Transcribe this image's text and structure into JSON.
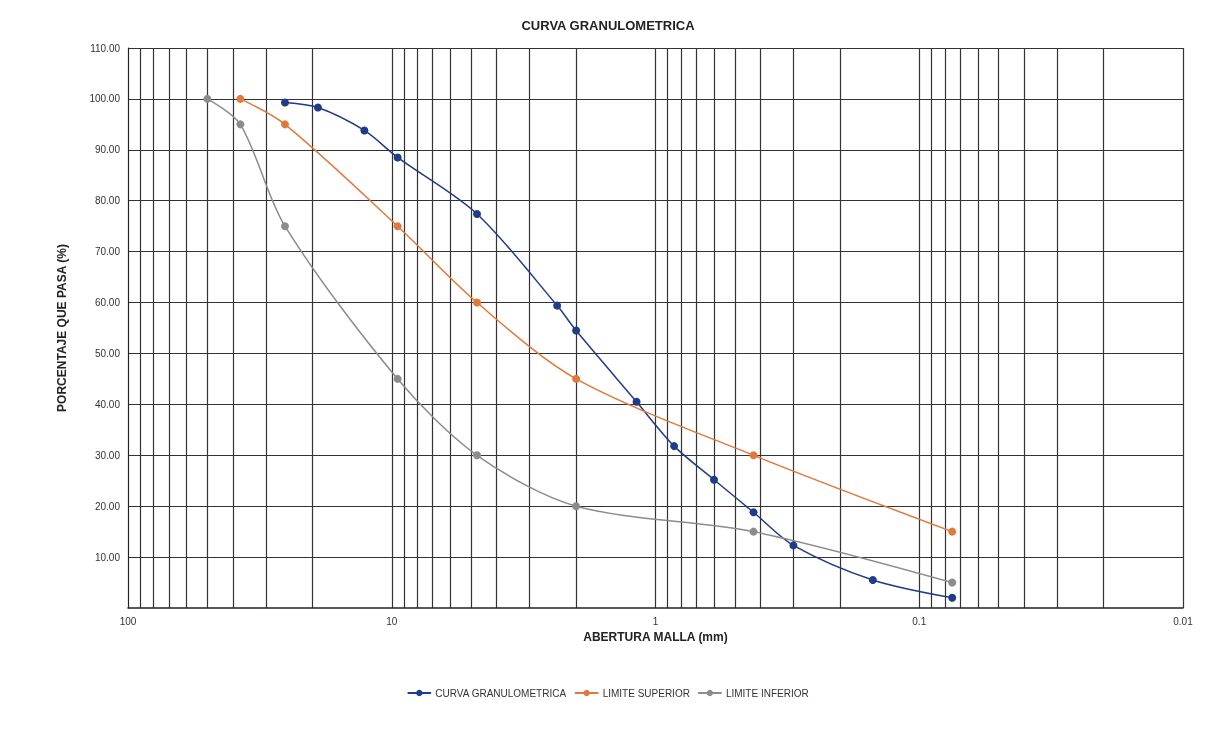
{
  "chart_data": {
    "type": "line",
    "title": "CURVA GRANULOMETRICA",
    "xlabel": "ABERTURA MALLA (mm)",
    "ylabel": "PORCENTAJE QUE PASA (%)",
    "series": [
      {
        "name": "CURVA GRANULOMETRICA",
        "color": "#1f3c88",
        "x": [
          25.4,
          19.05,
          12.7,
          9.5,
          4.75,
          2.36,
          2.0,
          1.18,
          0.85,
          0.6,
          0.425,
          0.3,
          0.15,
          0.075
        ],
        "values": [
          99.3,
          98.3,
          93.8,
          88.5,
          77.4,
          59.4,
          54.5,
          40.5,
          31.8,
          25.2,
          18.8,
          12.3,
          5.5,
          2.0
        ]
      },
      {
        "name": "LIMITE SUPERIOR",
        "color": "#e07a3a",
        "x": [
          37.5,
          25.4,
          9.5,
          4.75,
          2.0,
          0.425,
          0.075
        ],
        "values": [
          100,
          95,
          75,
          60,
          45,
          30,
          15
        ]
      },
      {
        "name": "LIMITE INFERIOR",
        "color": "#8c8c8c",
        "x": [
          50,
          37.5,
          25.4,
          9.5,
          4.75,
          2.0,
          0.425,
          0.075
        ],
        "values": [
          100,
          95,
          75,
          45,
          30,
          20,
          15,
          5
        ]
      }
    ],
    "log": "x",
    "xlim": [
      100,
      0.01
    ],
    "xticks": [
      100,
      10,
      1,
      0.1,
      0.01
    ],
    "ylim": [
      0,
      110
    ],
    "yticks": [
      {
        "value": 10,
        "label": "10.00"
      },
      {
        "value": 20,
        "label": "20.00"
      },
      {
        "value": 30,
        "label": "30.00"
      },
      {
        "value": 40,
        "label": "40.00"
      },
      {
        "value": 50,
        "label": "50.00"
      },
      {
        "value": 60,
        "label": "60.00"
      },
      {
        "value": 70,
        "label": "70.00"
      },
      {
        "value": 80,
        "label": "80.00"
      },
      {
        "value": 90,
        "label": "90.00"
      },
      {
        "value": 100,
        "label": "100.00"
      },
      {
        "value": 110,
        "label": "110.00"
      }
    ],
    "grid": true,
    "legend": "bottom",
    "marker": "circle",
    "line_style": "solid"
  }
}
